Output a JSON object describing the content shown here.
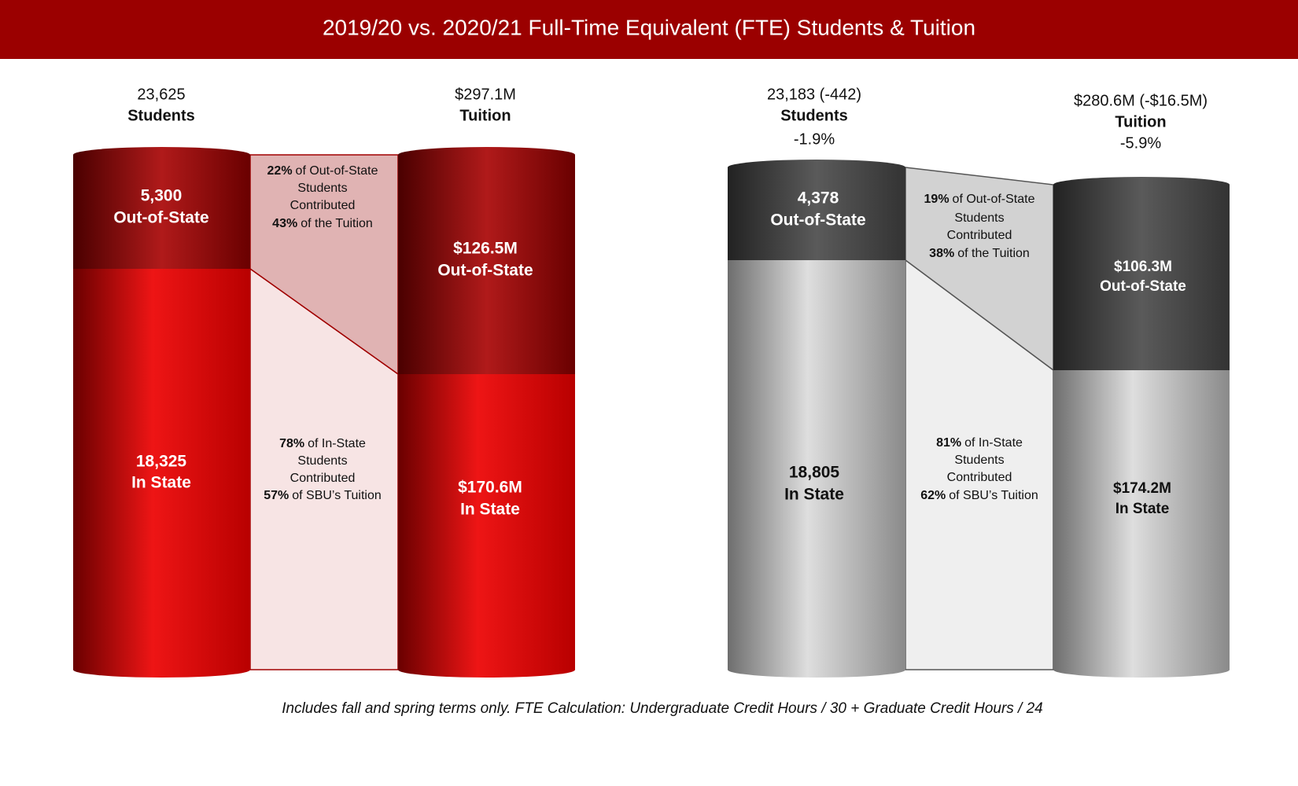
{
  "title": "2019/20 vs. 2020/21 Full-Time Equivalent (FTE) Students & Tuition",
  "panels": [
    {
      "students": {
        "total": "23,625",
        "label": "Students"
      },
      "tuition": {
        "total": "$297.1M",
        "label": "Tuition"
      },
      "students_out": {
        "value": "5,300",
        "label": "Out-of-State"
      },
      "students_in": {
        "value": "18,325",
        "label": "In State"
      },
      "tuition_out": {
        "value": "$126.5M",
        "label": "Out-of-State"
      },
      "tuition_in": {
        "value": "$170.6M",
        "label": "In State"
      },
      "note_out": {
        "pct1": "22%",
        "line1": "of Out-of-State",
        "line2": "Students",
        "line3": "Contributed",
        "pct2": "43%",
        "line4": "of the Tuition"
      },
      "note_in": {
        "pct1": "78%",
        "line1": "of In-State",
        "line2": "Students",
        "line3": "Contributed",
        "pct2": "57%",
        "line4": "of SBU’s Tuition"
      }
    },
    {
      "students": {
        "total": "23,183 (-442)",
        "label": "Students",
        "change": "-1.9%"
      },
      "tuition": {
        "total": "$280.6M (-$16.5M)",
        "label": "Tuition",
        "change": "-5.9%"
      },
      "students_out": {
        "value": "4,378",
        "label": "Out-of-State"
      },
      "students_in": {
        "value": "18,805",
        "label": "In State"
      },
      "tuition_out": {
        "value": "$106.3M",
        "label": "Out-of-State"
      },
      "tuition_in": {
        "value": "$174.2M",
        "label": "In State"
      },
      "note_out": {
        "pct1": "19%",
        "line1": "of Out-of-State",
        "line2": "Students",
        "line3": "Contributed",
        "pct2": "38%",
        "line4": "of the Tuition"
      },
      "note_in": {
        "pct1": "81%",
        "line1": "of In-State",
        "line2": "Students",
        "line3": "Contributed",
        "pct2": "62%",
        "line4": "of SBU’s Tuition"
      }
    }
  ],
  "footnote": "Includes fall and spring terms only. FTE Calculation: Undergraduate Credit Hours / 30 + Graduate Credit Hours / 24"
}
